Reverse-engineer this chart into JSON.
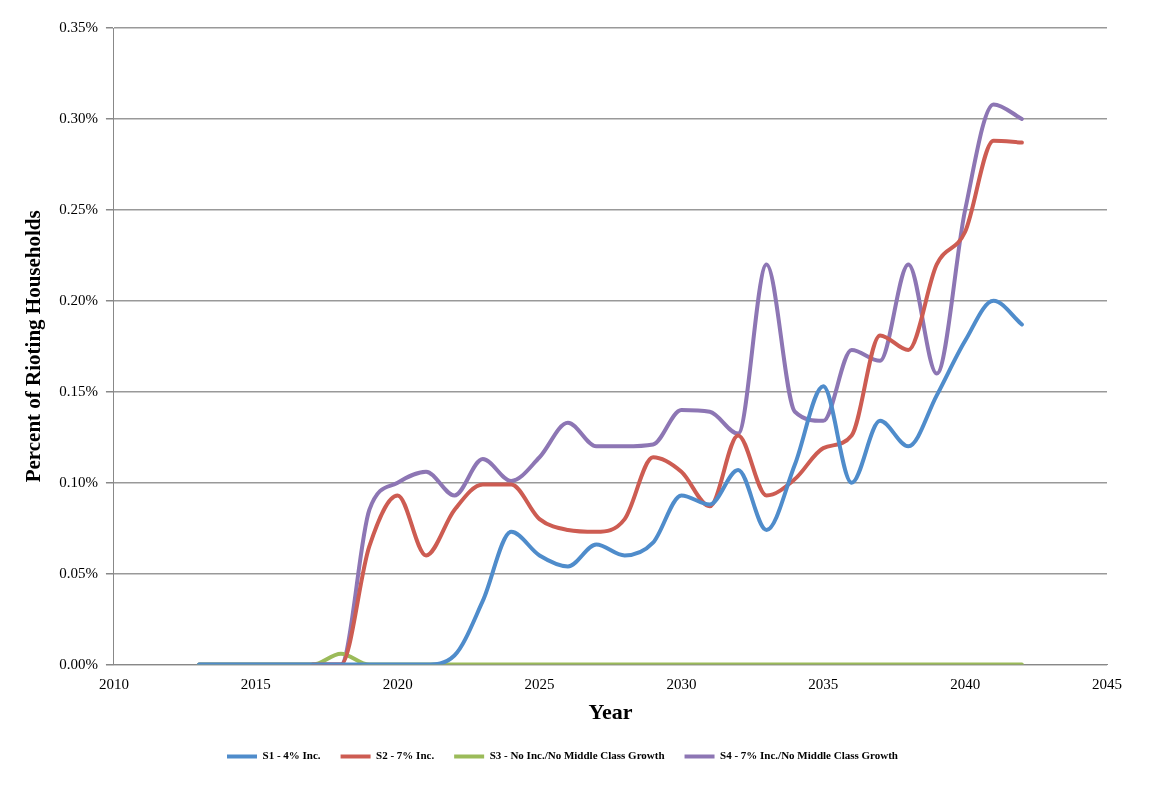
{
  "chart_data": {
    "type": "line",
    "xlabel": "Year",
    "ylabel": "Percent of Rioting Households",
    "x": [
      2013,
      2014,
      2015,
      2016,
      2017,
      2018,
      2019,
      2020,
      2021,
      2022,
      2023,
      2024,
      2025,
      2026,
      2027,
      2028,
      2029,
      2030,
      2031,
      2032,
      2033,
      2034,
      2035,
      2036,
      2037,
      2038,
      2039,
      2040,
      2041,
      2042
    ],
    "series": [
      {
        "name": "S1 - 4% Inc.",
        "color": "#4f8ccb",
        "values": [
          0,
          0,
          0,
          0,
          0,
          0,
          0,
          0,
          0,
          0.005,
          0.035,
          0.073,
          0.06,
          0.054,
          0.066,
          0.06,
          0.067,
          0.093,
          0.088,
          0.107,
          0.074,
          0.11,
          0.153,
          0.1,
          0.134,
          0.12,
          0.148,
          0.178,
          0.2,
          0.187
        ]
      },
      {
        "name": "S2 - 7% Inc.",
        "color": "#cd5c52",
        "values": [
          null,
          null,
          null,
          null,
          0,
          0,
          0.065,
          0.093,
          0.06,
          0.085,
          0.099,
          0.099,
          0.08,
          0.074,
          0.073,
          0.08,
          0.114,
          0.106,
          0.087,
          0.126,
          0.093,
          0.102,
          0.119,
          0.126,
          0.181,
          0.173,
          0.22,
          0.238,
          0.288,
          0.287
        ]
      },
      {
        "name": "S3 - No Inc./No Middle Class Growth",
        "color": "#9bbb59",
        "values": [
          0,
          0,
          0,
          0,
          0,
          0.006,
          0,
          0,
          0,
          0,
          0,
          0,
          0,
          0,
          0,
          0,
          0,
          0,
          0,
          0,
          0,
          0,
          0,
          0,
          0,
          0,
          0,
          0,
          0,
          0
        ]
      },
      {
        "name": "S4 - 7% Inc./No Middle Class Growth",
        "color": "#8d76b4",
        "values": [
          0,
          0,
          0,
          0,
          0,
          0,
          0.085,
          0.1,
          0.106,
          0.093,
          0.113,
          0.101,
          0.114,
          0.133,
          0.12,
          0.12,
          0.121,
          0.14,
          0.139,
          0.127,
          0.22,
          0.139,
          0.134,
          0.173,
          0.167,
          0.22,
          0.16,
          0.25,
          0.308,
          0.3
        ]
      }
    ],
    "xlim": [
      2010,
      2045
    ],
    "xticks": [
      2010,
      2015,
      2020,
      2025,
      2030,
      2035,
      2040,
      2045
    ],
    "ylim": [
      0,
      0.35
    ],
    "yticks": [
      {
        "value": 0,
        "label": "0.00%"
      },
      {
        "value": 0.05,
        "label": "0.05%"
      },
      {
        "value": 0.1,
        "label": "0.10%"
      },
      {
        "value": 0.15,
        "label": "0.15%"
      },
      {
        "value": 0.2,
        "label": "0.20%"
      },
      {
        "value": 0.25,
        "label": "0.25%"
      },
      {
        "value": 0.3,
        "label": "0.30%"
      },
      {
        "value": 0.35,
        "label": "0.35%"
      }
    ],
    "grid": "y",
    "legend": "bottom",
    "marker": "none",
    "line_style": "solid"
  }
}
